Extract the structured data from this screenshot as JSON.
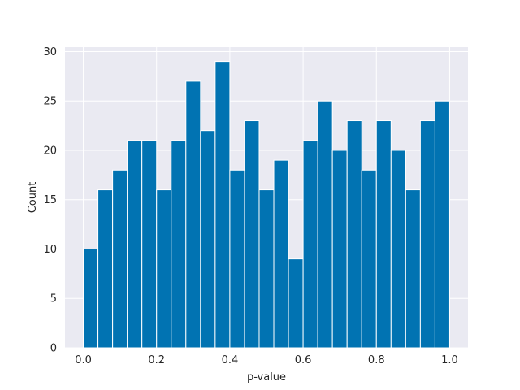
{
  "chart_data": {
    "type": "bar",
    "title": "",
    "xlabel": "p-value",
    "ylabel": "Count",
    "bin_width": 0.04,
    "bins": [
      {
        "start": 0.0,
        "count": 10
      },
      {
        "start": 0.04,
        "count": 16
      },
      {
        "start": 0.08,
        "count": 18
      },
      {
        "start": 0.12,
        "count": 21
      },
      {
        "start": 0.16,
        "count": 21
      },
      {
        "start": 0.2,
        "count": 16
      },
      {
        "start": 0.24,
        "count": 21
      },
      {
        "start": 0.28,
        "count": 27
      },
      {
        "start": 0.32,
        "count": 22
      },
      {
        "start": 0.36,
        "count": 29
      },
      {
        "start": 0.4,
        "count": 18
      },
      {
        "start": 0.44,
        "count": 23
      },
      {
        "start": 0.48,
        "count": 16
      },
      {
        "start": 0.52,
        "count": 19
      },
      {
        "start": 0.56,
        "count": 9
      },
      {
        "start": 0.6,
        "count": 21
      },
      {
        "start": 0.64,
        "count": 25
      },
      {
        "start": 0.68,
        "count": 20
      },
      {
        "start": 0.72,
        "count": 23
      },
      {
        "start": 0.76,
        "count": 18
      },
      {
        "start": 0.8,
        "count": 23
      },
      {
        "start": 0.84,
        "count": 20
      },
      {
        "start": 0.88,
        "count": 16
      },
      {
        "start": 0.92,
        "count": 23
      },
      {
        "start": 0.96,
        "count": 25
      }
    ],
    "xlim": [
      -0.05,
      1.05
    ],
    "ylim": [
      0,
      30.45
    ],
    "xticks": [
      "0.0",
      "0.2",
      "0.4",
      "0.6",
      "0.8",
      "1.0"
    ],
    "yticks": [
      "0",
      "5",
      "10",
      "15",
      "20",
      "25",
      "30"
    ],
    "grid": true,
    "colors": {
      "bar": "#0173b2",
      "bar_edge": "#ffffff",
      "plot_background": "#eaeaf2",
      "grid": "#ffffff",
      "text": "#262626"
    }
  }
}
